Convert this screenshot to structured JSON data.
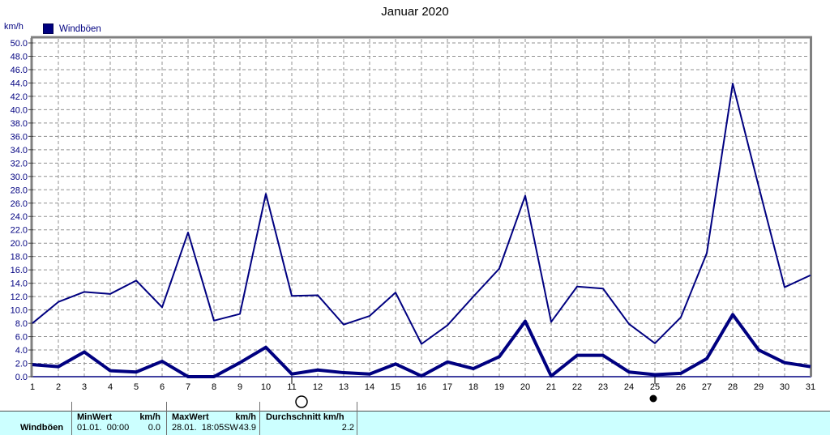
{
  "title": "Januar 2020",
  "axis_unit_label": "km/h",
  "legend": {
    "label": "Windböen",
    "color": "#000080"
  },
  "colors": {
    "series": "#000080",
    "grid": "#909090",
    "frame": "#808080",
    "y_axis_labels": "#000080",
    "x_axis_labels": "#000000",
    "tick": "#404040",
    "table_bg": "#CCFFFF"
  },
  "chart_data": {
    "type": "line",
    "title": "Januar 2020",
    "ylabel": "km/h",
    "xlabel": "",
    "x": [
      1,
      2,
      3,
      4,
      5,
      6,
      7,
      8,
      9,
      10,
      11,
      12,
      13,
      14,
      15,
      16,
      17,
      18,
      19,
      20,
      21,
      22,
      23,
      24,
      25,
      26,
      27,
      28,
      29,
      30,
      31
    ],
    "series": [
      {
        "id": "windboeen-max-line",
        "legend_label": "Windböen",
        "stroke_width": 2,
        "values": [
          8.0,
          11.2,
          12.7,
          12.4,
          14.4,
          10.4,
          21.6,
          8.4,
          9.4,
          27.4,
          12.1,
          12.2,
          7.8,
          9.1,
          12.6,
          4.9,
          7.7,
          12.0,
          16.2,
          27.1,
          8.2,
          13.5,
          13.2,
          7.9,
          5.0,
          8.9,
          18.5,
          43.9,
          28.5,
          13.4,
          15.2
        ]
      },
      {
        "id": "windboeen-lower-thick-line",
        "legend_label": "",
        "stroke_width": 4,
        "values": [
          1.8,
          1.5,
          3.7,
          0.9,
          0.7,
          2.3,
          0.0,
          0.0,
          2.1,
          4.4,
          0.4,
          1.0,
          0.6,
          0.4,
          1.9,
          0.1,
          2.2,
          1.2,
          3.0,
          8.3,
          0.1,
          3.2,
          3.2,
          0.7,
          0.3,
          0.5,
          2.7,
          9.3,
          4.0,
          2.1,
          1.5
        ]
      }
    ],
    "ylim": [
      0,
      50
    ],
    "ytick_step": 2,
    "ytick_format_decimals": 1,
    "grid": true,
    "legend_position": "top-left",
    "markers": [
      {
        "x": 11,
        "symbol": "open-circle"
      },
      {
        "x": 25,
        "symbol": "filled-circle"
      }
    ]
  },
  "table": {
    "row_label": "Windböen",
    "min": {
      "header": "MinWert",
      "unit": "km/h",
      "timestamp": "01.01.  00:00",
      "value": "0.0"
    },
    "max": {
      "header": "MaxWert",
      "unit": "km/h",
      "timestamp": "28.01.  18:05SW",
      "value": "43.9"
    },
    "avg": {
      "header": "Durchschnitt km/h",
      "value": "2.2"
    }
  }
}
